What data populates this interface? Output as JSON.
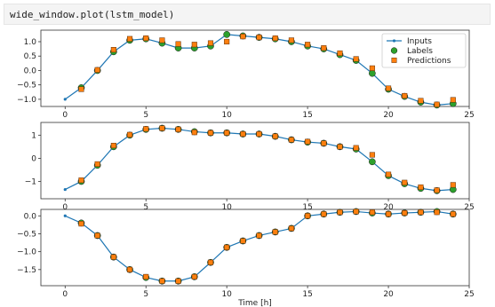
{
  "code_cell": {
    "text": "wide_window.plot(lstm_model)"
  },
  "colors": {
    "inputs": "#1f77b4",
    "labels": "#2ca02c",
    "predictions": "#ff7f0e"
  },
  "chart_data": [
    {
      "type": "line",
      "xlabel": "",
      "xlim": [
        -1.5,
        25.0
      ],
      "ylim": [
        -1.25,
        1.4
      ],
      "xticks": [
        0,
        5,
        10,
        15,
        20,
        25
      ],
      "yticks": [
        -1.0,
        -0.5,
        0.0,
        0.5,
        1.0
      ],
      "ytick_labels": [
        "−1.0",
        "−0.5",
        "0.0",
        "0.5",
        "1.0"
      ],
      "legend": {
        "placement": "top-right",
        "entries": [
          "Inputs",
          "Labels",
          "Predictions"
        ]
      },
      "series": [
        {
          "name": "Inputs",
          "x": [
            0,
            1,
            2,
            3,
            4,
            5,
            6,
            7,
            8,
            9,
            10,
            11,
            12,
            13,
            14,
            15,
            16,
            17,
            18,
            19,
            20,
            21,
            22,
            23,
            24
          ],
          "values": [
            -1.0,
            -0.6,
            0.0,
            0.65,
            1.05,
            1.1,
            0.95,
            0.78,
            0.78,
            0.85,
            1.25,
            1.2,
            1.15,
            1.1,
            1.0,
            0.85,
            0.75,
            0.55,
            0.35,
            -0.1,
            -0.65,
            -0.9,
            -1.1,
            -1.2,
            -1.15
          ]
        },
        {
          "name": "Labels",
          "x": [
            1,
            2,
            3,
            4,
            5,
            6,
            7,
            8,
            9,
            10,
            11,
            12,
            13,
            14,
            15,
            16,
            17,
            18,
            19,
            20,
            21,
            22,
            23,
            24
          ],
          "values": [
            -0.6,
            0.0,
            0.65,
            1.05,
            1.1,
            0.95,
            0.78,
            0.78,
            0.85,
            1.25,
            1.2,
            1.15,
            1.1,
            1.0,
            0.85,
            0.75,
            0.55,
            0.35,
            -0.1,
            -0.65,
            -0.9,
            -1.1,
            -1.2,
            -1.15
          ]
        },
        {
          "name": "Predictions",
          "x": [
            1,
            2,
            3,
            4,
            5,
            6,
            7,
            8,
            9,
            10,
            11,
            12,
            13,
            14,
            15,
            16,
            17,
            18,
            19,
            20,
            21,
            22,
            23,
            24
          ],
          "values": [
            -0.65,
            0.02,
            0.72,
            1.1,
            1.12,
            1.05,
            0.92,
            0.9,
            0.95,
            1.0,
            1.18,
            1.15,
            1.12,
            1.05,
            0.9,
            0.78,
            0.6,
            0.4,
            0.08,
            -0.62,
            -0.88,
            -1.05,
            -1.18,
            -1.02
          ]
        }
      ]
    },
    {
      "type": "line",
      "xlabel": "",
      "xlim": [
        -1.5,
        25.0
      ],
      "ylim": [
        -1.75,
        1.55
      ],
      "xticks": [
        0,
        5,
        10,
        15,
        20,
        25
      ],
      "yticks": [
        -1,
        0,
        1
      ],
      "ytick_labels": [
        "−1",
        "0",
        "1"
      ],
      "series": [
        {
          "name": "Inputs",
          "x": [
            0,
            1,
            2,
            3,
            4,
            5,
            6,
            7,
            8,
            9,
            10,
            11,
            12,
            13,
            14,
            15,
            16,
            17,
            18,
            19,
            20,
            21,
            22,
            23,
            24
          ],
          "values": [
            -1.35,
            -1.0,
            -0.3,
            0.5,
            1.0,
            1.25,
            1.3,
            1.25,
            1.15,
            1.1,
            1.1,
            1.05,
            1.05,
            0.95,
            0.8,
            0.7,
            0.65,
            0.5,
            0.4,
            -0.15,
            -0.75,
            -1.1,
            -1.3,
            -1.4,
            -1.35
          ]
        },
        {
          "name": "Labels",
          "x": [
            1,
            2,
            3,
            4,
            5,
            6,
            7,
            8,
            9,
            10,
            11,
            12,
            13,
            14,
            15,
            16,
            17,
            18,
            19,
            20,
            21,
            22,
            23,
            24
          ],
          "values": [
            -1.0,
            -0.3,
            0.5,
            1.0,
            1.25,
            1.3,
            1.25,
            1.15,
            1.1,
            1.1,
            1.05,
            1.05,
            0.95,
            0.8,
            0.7,
            0.65,
            0.5,
            0.4,
            -0.15,
            -0.75,
            -1.1,
            -1.3,
            -1.4,
            -1.35
          ]
        },
        {
          "name": "Predictions",
          "x": [
            1,
            2,
            3,
            4,
            5,
            6,
            7,
            8,
            9,
            10,
            11,
            12,
            13,
            14,
            15,
            16,
            17,
            18,
            19,
            20,
            21,
            22,
            23,
            24
          ],
          "values": [
            -0.95,
            -0.25,
            0.55,
            1.02,
            1.27,
            1.3,
            1.25,
            1.12,
            1.1,
            1.1,
            1.05,
            1.05,
            0.95,
            0.8,
            0.72,
            0.65,
            0.5,
            0.45,
            0.15,
            -0.7,
            -1.05,
            -1.25,
            -1.38,
            -1.15
          ]
        }
      ]
    },
    {
      "type": "line",
      "xlabel": "Time [h]",
      "xlim": [
        -1.5,
        25.0
      ],
      "ylim": [
        -1.95,
        0.18
      ],
      "xticks": [
        0,
        5,
        10,
        15,
        20,
        25
      ],
      "yticks": [
        -1.5,
        -1.0,
        -0.5,
        0.0
      ],
      "ytick_labels": [
        "−1.5",
        "−1.0",
        "−0.5",
        "0.0"
      ],
      "series": [
        {
          "name": "Inputs",
          "x": [
            0,
            1,
            2,
            3,
            4,
            5,
            6,
            7,
            8,
            9,
            10,
            11,
            12,
            13,
            14,
            15,
            16,
            17,
            18,
            19,
            20,
            21,
            22,
            23,
            24
          ],
          "values": [
            0.0,
            -0.2,
            -0.55,
            -1.15,
            -1.5,
            -1.72,
            -1.82,
            -1.82,
            -1.7,
            -1.3,
            -0.88,
            -0.7,
            -0.55,
            -0.45,
            -0.35,
            0.0,
            0.05,
            0.1,
            0.12,
            0.08,
            0.05,
            0.08,
            0.1,
            0.12,
            0.05
          ]
        },
        {
          "name": "Labels",
          "x": [
            1,
            2,
            3,
            4,
            5,
            6,
            7,
            8,
            9,
            10,
            11,
            12,
            13,
            14,
            15,
            16,
            17,
            18,
            19,
            20,
            21,
            22,
            23,
            24
          ],
          "values": [
            -0.2,
            -0.55,
            -1.15,
            -1.5,
            -1.72,
            -1.82,
            -1.82,
            -1.7,
            -1.3,
            -0.88,
            -0.7,
            -0.55,
            -0.45,
            -0.35,
            0.0,
            0.05,
            0.1,
            0.12,
            0.08,
            0.05,
            0.08,
            0.1,
            0.12,
            0.05
          ]
        },
        {
          "name": "Predictions",
          "x": [
            1,
            2,
            3,
            4,
            5,
            6,
            7,
            8,
            9,
            10,
            11,
            12,
            13,
            14,
            15,
            16,
            17,
            18,
            19,
            20,
            21,
            22,
            23,
            24
          ],
          "values": [
            -0.22,
            -0.55,
            -1.15,
            -1.5,
            -1.7,
            -1.82,
            -1.82,
            -1.7,
            -1.3,
            -0.88,
            -0.7,
            -0.55,
            -0.45,
            -0.35,
            0.0,
            0.05,
            0.1,
            0.12,
            0.1,
            0.05,
            0.08,
            0.1,
            0.1,
            0.05
          ]
        }
      ]
    }
  ]
}
